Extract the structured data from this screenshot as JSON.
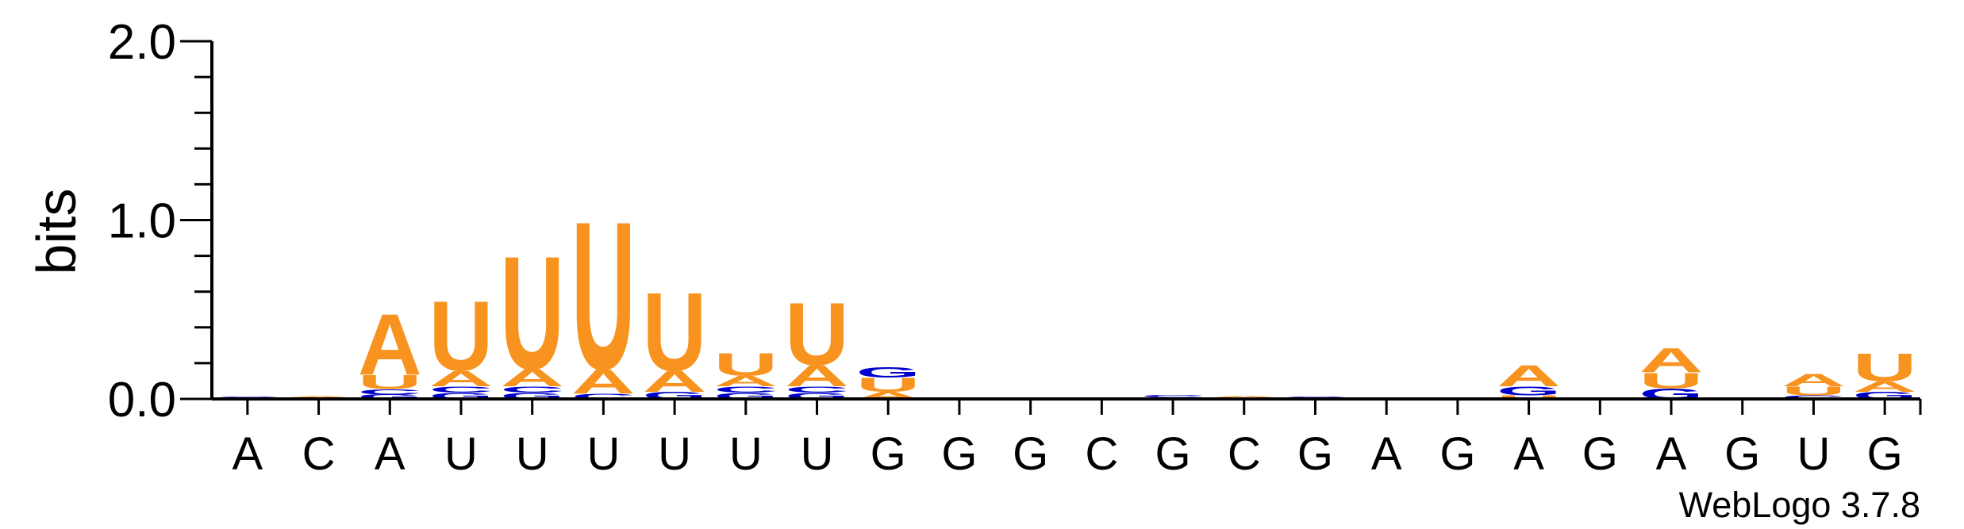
{
  "chart_data": {
    "type": "sequence-logo",
    "ylabel": "bits",
    "ylim": [
      0,
      2.0
    ],
    "yticks": [
      {
        "value": 0.0,
        "label": "0.0"
      },
      {
        "value": 1.0,
        "label": "1.0"
      },
      {
        "value": 2.0,
        "label": "2.0"
      }
    ],
    "xtick_labels": [
      "A",
      "C",
      "A",
      "U",
      "U",
      "U",
      "U",
      "U",
      "U",
      "G",
      "G",
      "G",
      "C",
      "G",
      "C",
      "G",
      "A",
      "G",
      "A",
      "G",
      "A",
      "G",
      "U",
      "G"
    ],
    "colors": {
      "A": "#f7931e",
      "U": "#f7931e",
      "G": "#0000cc",
      "C": "#0000cc"
    },
    "positions": [
      [
        {
          "l": "C",
          "h": 0.015
        }
      ],
      [
        {
          "l": "G",
          "h": 0.01
        },
        {
          "l": "A",
          "h": 0.006
        }
      ],
      [
        {
          "l": "G",
          "h": 0.025
        },
        {
          "l": "C",
          "h": 0.03
        },
        {
          "l": "U",
          "h": 0.08
        },
        {
          "l": "A",
          "h": 0.35
        }
      ],
      [
        {
          "l": "G",
          "h": 0.035
        },
        {
          "l": "C",
          "h": 0.035
        },
        {
          "l": "A",
          "h": 0.09
        },
        {
          "l": "U",
          "h": 0.4
        }
      ],
      [
        {
          "l": "G",
          "h": 0.035
        },
        {
          "l": "C",
          "h": 0.035
        },
        {
          "l": "A",
          "h": 0.1
        },
        {
          "l": "U",
          "h": 0.65
        }
      ],
      [
        {
          "l": "C",
          "h": 0.03
        },
        {
          "l": "A",
          "h": 0.14
        },
        {
          "l": "U",
          "h": 0.85
        }
      ],
      [
        {
          "l": "G",
          "h": 0.04
        },
        {
          "l": "A",
          "h": 0.12
        },
        {
          "l": "U",
          "h": 0.45
        }
      ],
      [
        {
          "l": "G",
          "h": 0.035
        },
        {
          "l": "C",
          "h": 0.035
        },
        {
          "l": "A",
          "h": 0.06
        },
        {
          "l": "U",
          "h": 0.13
        }
      ],
      [
        {
          "l": "G",
          "h": 0.035
        },
        {
          "l": "C",
          "h": 0.035
        },
        {
          "l": "A",
          "h": 0.12
        },
        {
          "l": "U",
          "h": 0.36
        }
      ],
      [
        {
          "l": "A",
          "h": 0.04
        },
        {
          "l": "U",
          "h": 0.08
        },
        {
          "l": "G",
          "h": 0.06
        }
      ],
      [
        {
          "l": "C",
          "h": 0.01
        }
      ],
      [],
      [],
      [
        {
          "l": "A",
          "h": 0.01
        },
        {
          "l": "C",
          "h": 0.015
        }
      ],
      [
        {
          "l": "G",
          "h": 0.01
        },
        {
          "l": "A",
          "h": 0.01
        }
      ],
      [
        {
          "l": "C",
          "h": 0.015
        }
      ],
      [],
      [],
      [
        {
          "l": "U",
          "h": 0.02
        },
        {
          "l": "G",
          "h": 0.05
        },
        {
          "l": "A",
          "h": 0.12
        }
      ],
      [],
      [
        {
          "l": "G",
          "h": 0.06
        },
        {
          "l": "U",
          "h": 0.09
        },
        {
          "l": "A",
          "h": 0.14
        }
      ],
      [],
      [
        {
          "l": "C",
          "h": 0.02
        },
        {
          "l": "U",
          "h": 0.05
        },
        {
          "l": "A",
          "h": 0.07
        }
      ],
      [
        {
          "l": "G",
          "h": 0.04
        },
        {
          "l": "A",
          "h": 0.06
        },
        {
          "l": "U",
          "h": 0.16
        }
      ]
    ]
  },
  "footer": {
    "credit": "WebLogo 3.7.8"
  }
}
